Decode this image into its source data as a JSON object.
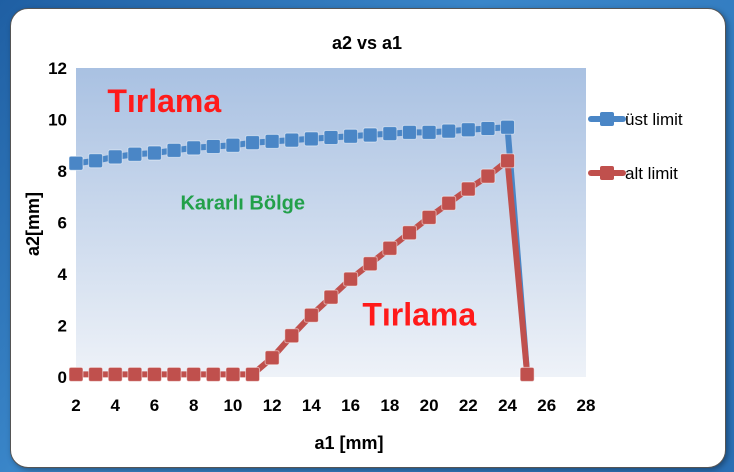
{
  "chart_data": {
    "type": "line",
    "title": "a2 vs a1",
    "xlabel": "a1 [mm]",
    "ylabel": "a2[mm]",
    "xlim": [
      2,
      28
    ],
    "ylim": [
      0,
      12
    ],
    "x_ticks": [
      "2",
      "4",
      "6",
      "8",
      "10",
      "12",
      "14",
      "16",
      "18",
      "20",
      "22",
      "24",
      "26",
      "28"
    ],
    "y_ticks": [
      "0",
      "2",
      "4",
      "6",
      "8",
      "10",
      "12"
    ],
    "grid": false,
    "legend_position": "right",
    "series": [
      {
        "name": "üst limit",
        "color": "#4a86c6",
        "x": [
          2,
          3,
          4,
          5,
          6,
          7,
          8,
          9,
          10,
          11,
          12,
          13,
          14,
          15,
          16,
          17,
          18,
          19,
          20,
          21,
          22,
          23,
          24,
          25
        ],
        "y": [
          8.3,
          8.4,
          8.55,
          8.65,
          8.7,
          8.8,
          8.9,
          8.95,
          9.0,
          9.1,
          9.15,
          9.2,
          9.25,
          9.3,
          9.35,
          9.4,
          9.45,
          9.5,
          9.5,
          9.55,
          9.6,
          9.65,
          9.7,
          0.1
        ]
      },
      {
        "name": "alt limit",
        "color": "#c0504d",
        "x": [
          2,
          3,
          4,
          5,
          6,
          7,
          8,
          9,
          10,
          11,
          12,
          13,
          14,
          15,
          16,
          17,
          18,
          19,
          20,
          21,
          22,
          23,
          24,
          25
        ],
        "y": [
          0.1,
          0.1,
          0.1,
          0.1,
          0.1,
          0.1,
          0.1,
          0.1,
          0.1,
          0.1,
          0.75,
          1.6,
          2.4,
          3.1,
          3.8,
          4.4,
          5.0,
          5.6,
          6.2,
          6.75,
          7.3,
          7.8,
          8.4,
          0.1
        ]
      }
    ],
    "annotations": [
      {
        "text": "Tırlama",
        "x": 6.5,
        "y": 10.3,
        "style": "red"
      },
      {
        "text": "Kararlı Bölge",
        "x": 10.5,
        "y": 6.5,
        "style": "green"
      },
      {
        "text": "Tırlama",
        "x": 19.5,
        "y": 2.0,
        "style": "red"
      }
    ]
  }
}
